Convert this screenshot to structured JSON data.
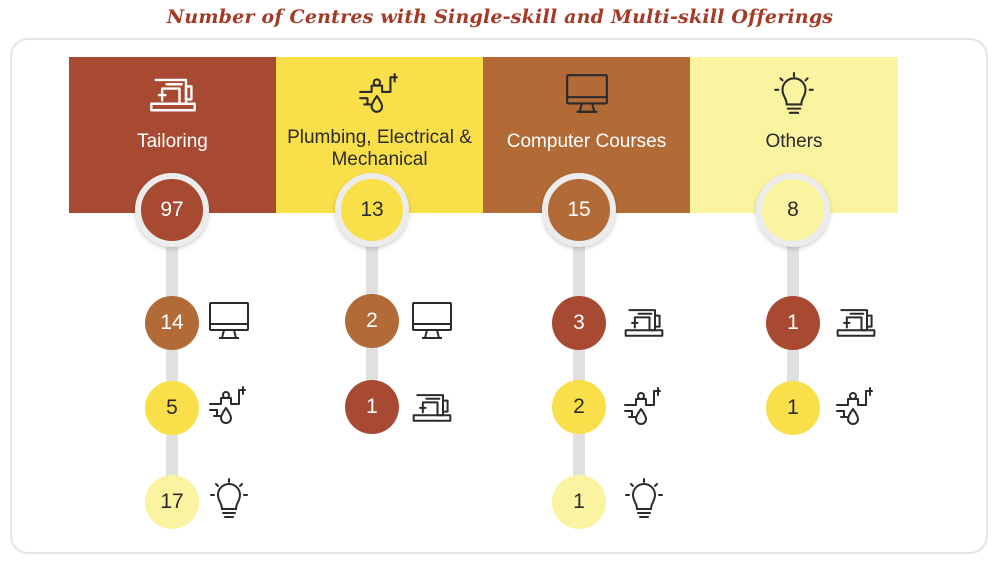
{
  "title": "Number of Centres with Single-skill and Multi-skill Offerings",
  "colors": {
    "rust": "#a84a32",
    "yellow": "#f9df4a",
    "brown": "#b26a36",
    "pale": "#faf3a0"
  },
  "columns": [
    {
      "label": "Tailoring",
      "icon": "sewing-machine-icon",
      "count": "97",
      "combos": [
        {
          "value": "14",
          "icon": "computer-icon"
        },
        {
          "value": "5",
          "icon": "tap-pipe-icon"
        },
        {
          "value": "17",
          "icon": "lightbulb-icon"
        }
      ]
    },
    {
      "label": "Plumbing, Electrical & Mechanical",
      "icon": "tap-pipe-icon",
      "count": "13",
      "combos": [
        {
          "value": "2",
          "icon": "computer-icon"
        },
        {
          "value": "1",
          "icon": "sewing-machine-icon"
        }
      ]
    },
    {
      "label": "Computer Courses",
      "icon": "computer-icon",
      "count": "15",
      "combos": [
        {
          "value": "3",
          "icon": "sewing-machine-icon"
        },
        {
          "value": "2",
          "icon": "tap-pipe-icon"
        },
        {
          "value": "1",
          "icon": "lightbulb-icon"
        }
      ]
    },
    {
      "label": "Others",
      "icon": "lightbulb-icon",
      "count": "8",
      "combos": [
        {
          "value": "1",
          "icon": "sewing-machine-icon"
        },
        {
          "value": "1",
          "icon": "tap-pipe-icon"
        }
      ]
    }
  ]
}
